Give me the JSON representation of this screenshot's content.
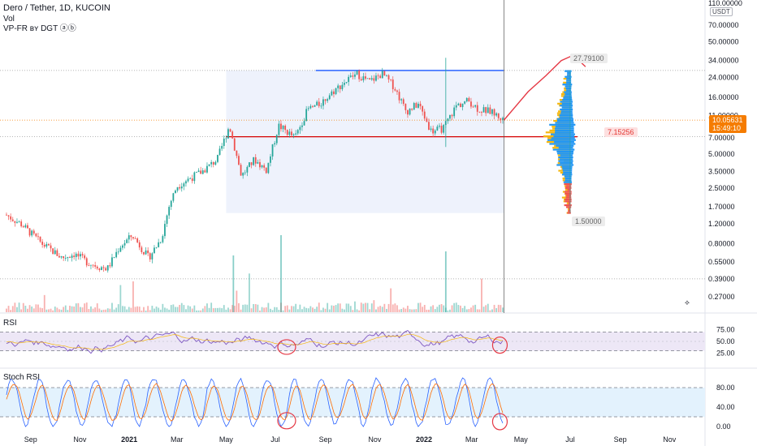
{
  "header": {
    "title": "Dero / Tether, 1D, KUCOIN",
    "vol_label": "Vol",
    "indicator_label": "VP-FR ʙʏ DGT ⓐⓑ"
  },
  "currency_badge": "USDT",
  "price_tag": {
    "price": "10.05631",
    "countdown": "15:49:10"
  },
  "profile_labels": {
    "high": "27.79100",
    "poc": "7.15256",
    "low": "1.50000"
  },
  "panes": {
    "rsi_label": "RSI",
    "stoch_label": "Stoch RSI"
  },
  "colors": {
    "up": "#26a69a",
    "down": "#ef5350",
    "rsi_line": "#7e57c2",
    "rsi_band": "#ede7f6",
    "stoch_band": "#e3f2fd",
    "volume_profile_up": "#2196f3",
    "volume_profile_down": "#f5b70f",
    "poc": "#d50000",
    "annotation": "#e53945",
    "top_line": "#2962ff",
    "price_tag": "#f57c00"
  },
  "chart_data": [
    {
      "type": "candlestick",
      "title": "Dero / Tether, 1D, KUCOIN",
      "scale": "log",
      "x_ticks": [
        "Sep",
        "Nov",
        "2021",
        "Mar",
        "May",
        "Jul",
        "Sep",
        "Nov",
        "2022",
        "Mar",
        "May",
        "Jul",
        "Sep",
        "Nov"
      ],
      "y_ticks": [
        "110.00000",
        "70.00000",
        "50.00000",
        "34.00000",
        "24.00000",
        "16.00000",
        "11.00000",
        "7.00000",
        "5.00000",
        "3.50000",
        "2.50000",
        "1.70000",
        "1.20000",
        "0.80000",
        "0.55000",
        "0.39000",
        "0.27000"
      ],
      "y_tick_values": [
        110,
        70,
        50,
        34,
        24,
        16,
        11,
        7,
        5,
        3.5,
        2.5,
        1.7,
        1.2,
        0.8,
        0.55,
        0.39,
        0.27
      ],
      "price_path": [
        {
          "t": "2020-08-01",
          "v": 1.45
        },
        {
          "t": "2020-08-20",
          "v": 1.2
        },
        {
          "t": "2020-09-15",
          "v": 0.8
        },
        {
          "t": "2020-10-10",
          "v": 0.6
        },
        {
          "t": "2020-10-25",
          "v": 0.65
        },
        {
          "t": "2020-11-10",
          "v": 0.55
        },
        {
          "t": "2020-11-25",
          "v": 0.5
        },
        {
          "t": "2020-12-05",
          "v": 0.48
        },
        {
          "t": "2020-12-20",
          "v": 0.75
        },
        {
          "t": "2021-01-05",
          "v": 0.95
        },
        {
          "t": "2021-01-25",
          "v": 0.6
        },
        {
          "t": "2021-02-10",
          "v": 0.9
        },
        {
          "t": "2021-02-20",
          "v": 1.8
        },
        {
          "t": "2021-03-01",
          "v": 2.6
        },
        {
          "t": "2021-03-15",
          "v": 3.0
        },
        {
          "t": "2021-04-01",
          "v": 3.5
        },
        {
          "t": "2021-04-20",
          "v": 4.5
        },
        {
          "t": "2021-05-05",
          "v": 9.0
        },
        {
          "t": "2021-05-20",
          "v": 3.2
        },
        {
          "t": "2021-06-05",
          "v": 4.5
        },
        {
          "t": "2021-06-20",
          "v": 3.6
        },
        {
          "t": "2021-07-05",
          "v": 9.0
        },
        {
          "t": "2021-07-25",
          "v": 7.0
        },
        {
          "t": "2021-08-10",
          "v": 12.5
        },
        {
          "t": "2021-08-25",
          "v": 14.0
        },
        {
          "t": "2021-09-10",
          "v": 18.0
        },
        {
          "t": "2021-09-25",
          "v": 22.0
        },
        {
          "t": "2021-10-10",
          "v": 26.0
        },
        {
          "t": "2021-10-25",
          "v": 22.0
        },
        {
          "t": "2021-11-10",
          "v": 26.0
        },
        {
          "t": "2021-11-25",
          "v": 20.0
        },
        {
          "t": "2021-12-10",
          "v": 12.0
        },
        {
          "t": "2021-12-25",
          "v": 14.0
        },
        {
          "t": "2022-01-10",
          "v": 8.0
        },
        {
          "t": "2022-01-25",
          "v": 8.5
        },
        {
          "t": "2022-02-10",
          "v": 13.5
        },
        {
          "t": "2022-02-25",
          "v": 15.0
        },
        {
          "t": "2022-03-10",
          "v": 12.5
        },
        {
          "t": "2022-03-25",
          "v": 12.0
        },
        {
          "t": "2022-04-10",
          "v": 10.05
        }
      ],
      "projection_path": [
        {
          "t": "2022-04-10",
          "v": 10.05
        },
        {
          "t": "2022-05-10",
          "v": 18.0
        },
        {
          "t": "2022-06-01",
          "v": 25.0
        },
        {
          "t": "2022-06-20",
          "v": 34.0
        },
        {
          "t": "2022-07-05",
          "v": 38.0
        },
        {
          "t": "2022-07-20",
          "v": 30.0
        }
      ],
      "levels": {
        "top": 27.791,
        "poc": 7.15256,
        "low": 1.5,
        "last": 10.05631
      }
    },
    {
      "type": "line",
      "title": "RSI",
      "y_ticks": [
        "75.00",
        "50.00",
        "25.00"
      ],
      "y_tick_values": [
        75,
        50,
        25
      ],
      "bands": [
        70,
        30
      ]
    },
    {
      "type": "line",
      "title": "Stoch RSI",
      "y_ticks": [
        "80.00",
        "40.00",
        "0.00"
      ],
      "y_tick_values": [
        80,
        40,
        0
      ],
      "bands": [
        80,
        20
      ]
    }
  ]
}
